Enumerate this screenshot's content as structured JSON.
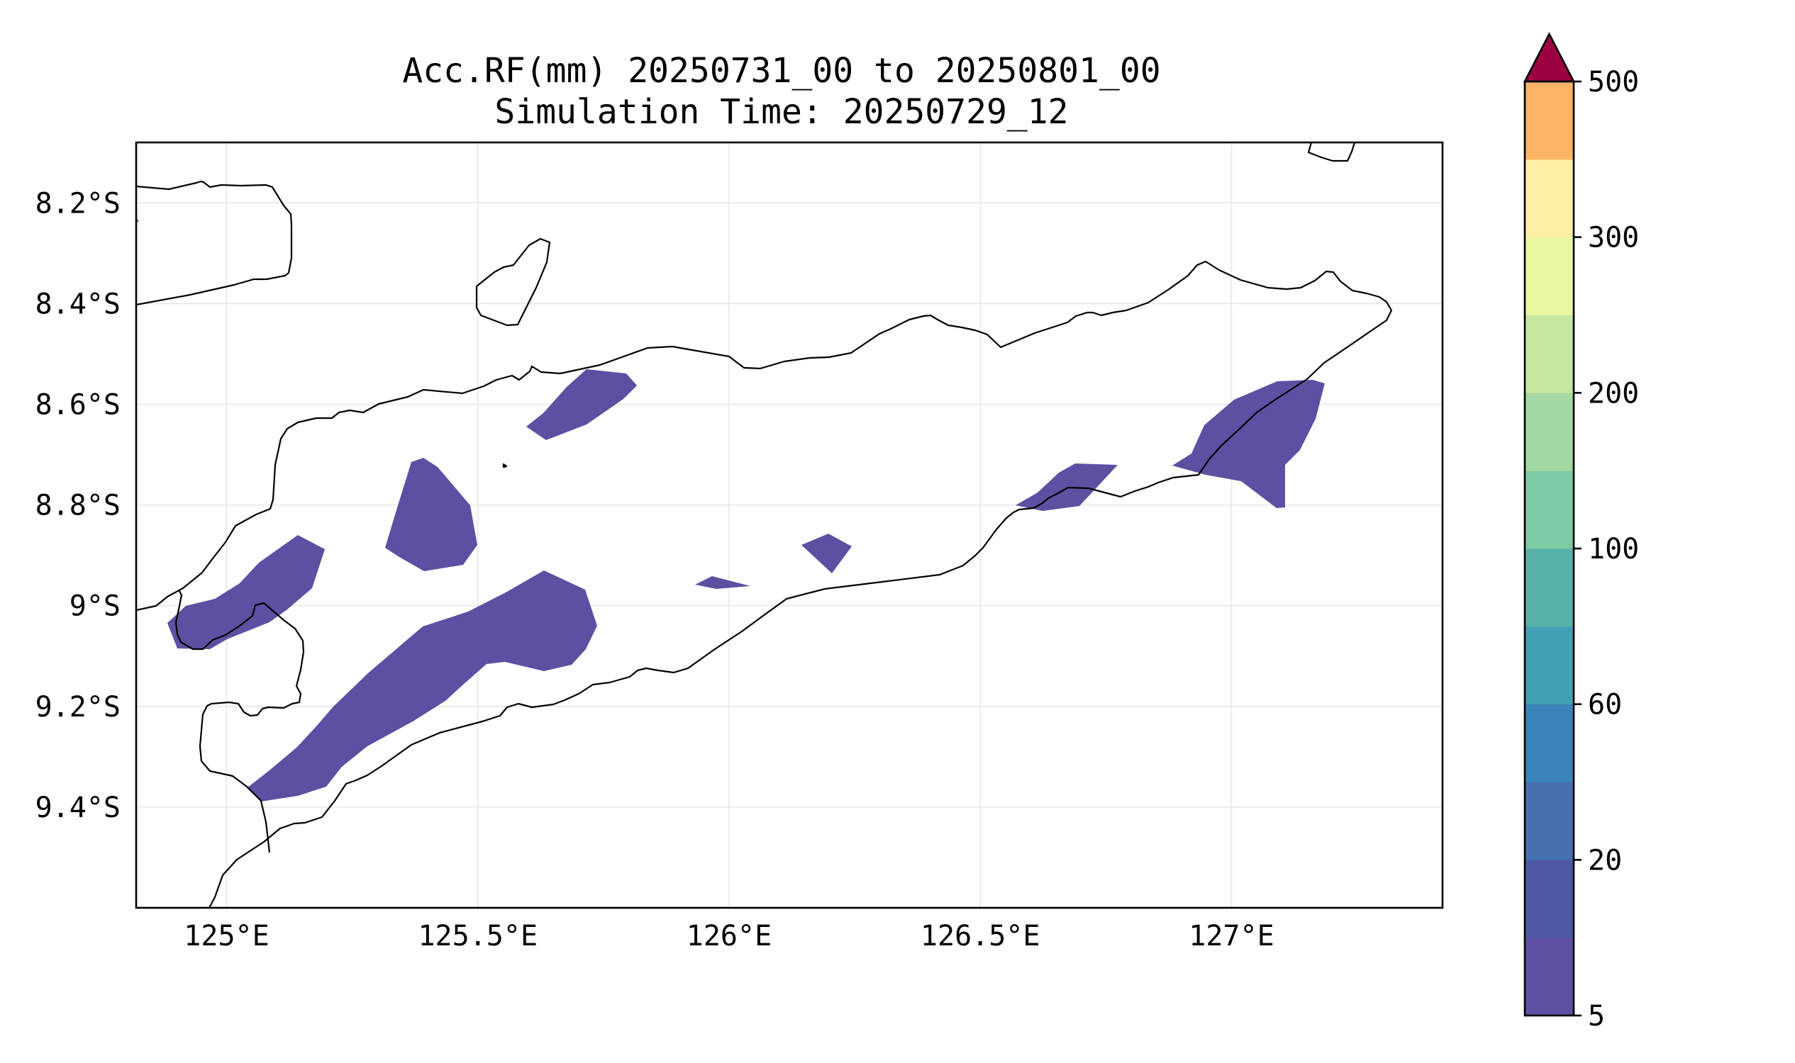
{
  "figure": {
    "title_line1": "Acc.RF(mm) 20250731_00 to 20250801_00",
    "title_line2": "Simulation Time: 20250729_12"
  },
  "map": {
    "lon_range": [
      124.82,
      127.42
    ],
    "lat_range": [
      -9.6,
      -8.08
    ],
    "lon_ticks": [
      {
        "value": 125.0,
        "label": "125°E"
      },
      {
        "value": 125.5,
        "label": "125.5°E"
      },
      {
        "value": 126.0,
        "label": "126°E"
      },
      {
        "value": 126.5,
        "label": "126.5°E"
      },
      {
        "value": 127.0,
        "label": "127°E"
      }
    ],
    "lat_ticks": [
      {
        "value": -8.2,
        "label": "8.2°S"
      },
      {
        "value": -8.4,
        "label": "8.4°S"
      },
      {
        "value": -8.6,
        "label": "8.6°S"
      },
      {
        "value": -8.8,
        "label": "8.8°S"
      },
      {
        "value": -9.0,
        "label": "9°S"
      },
      {
        "value": -9.2,
        "label": "9.2°S"
      },
      {
        "value": -9.4,
        "label": "9.4°S"
      }
    ],
    "gridlines": true,
    "rainfall_color": "#5e4fa2",
    "coastline_color": "#000000"
  },
  "colorbar": {
    "extend": "max",
    "extend_color": "#9e0142",
    "levels": [
      5,
      10,
      20,
      40,
      60,
      80,
      100,
      150,
      200,
      250,
      300,
      400,
      500
    ],
    "colors": [
      "#5e4fa2",
      "#4f58a5",
      "#4670b0",
      "#3a84bb",
      "#43a0b2",
      "#57b1a7",
      "#7ccba4",
      "#a2d9a3",
      "#c6e7a0",
      "#eaf7a1",
      "#fdefa3",
      "#fdb366",
      "#d6404e"
    ],
    "tick_labels": [
      {
        "level_index": 0,
        "label": "5"
      },
      {
        "level_index": 2,
        "label": "20"
      },
      {
        "level_index": 4,
        "label": "60"
      },
      {
        "level_index": 6,
        "label": "100"
      },
      {
        "level_index": 8,
        "label": "200"
      },
      {
        "level_index": 10,
        "label": "300"
      },
      {
        "level_index": 12,
        "label": "500"
      }
    ]
  }
}
